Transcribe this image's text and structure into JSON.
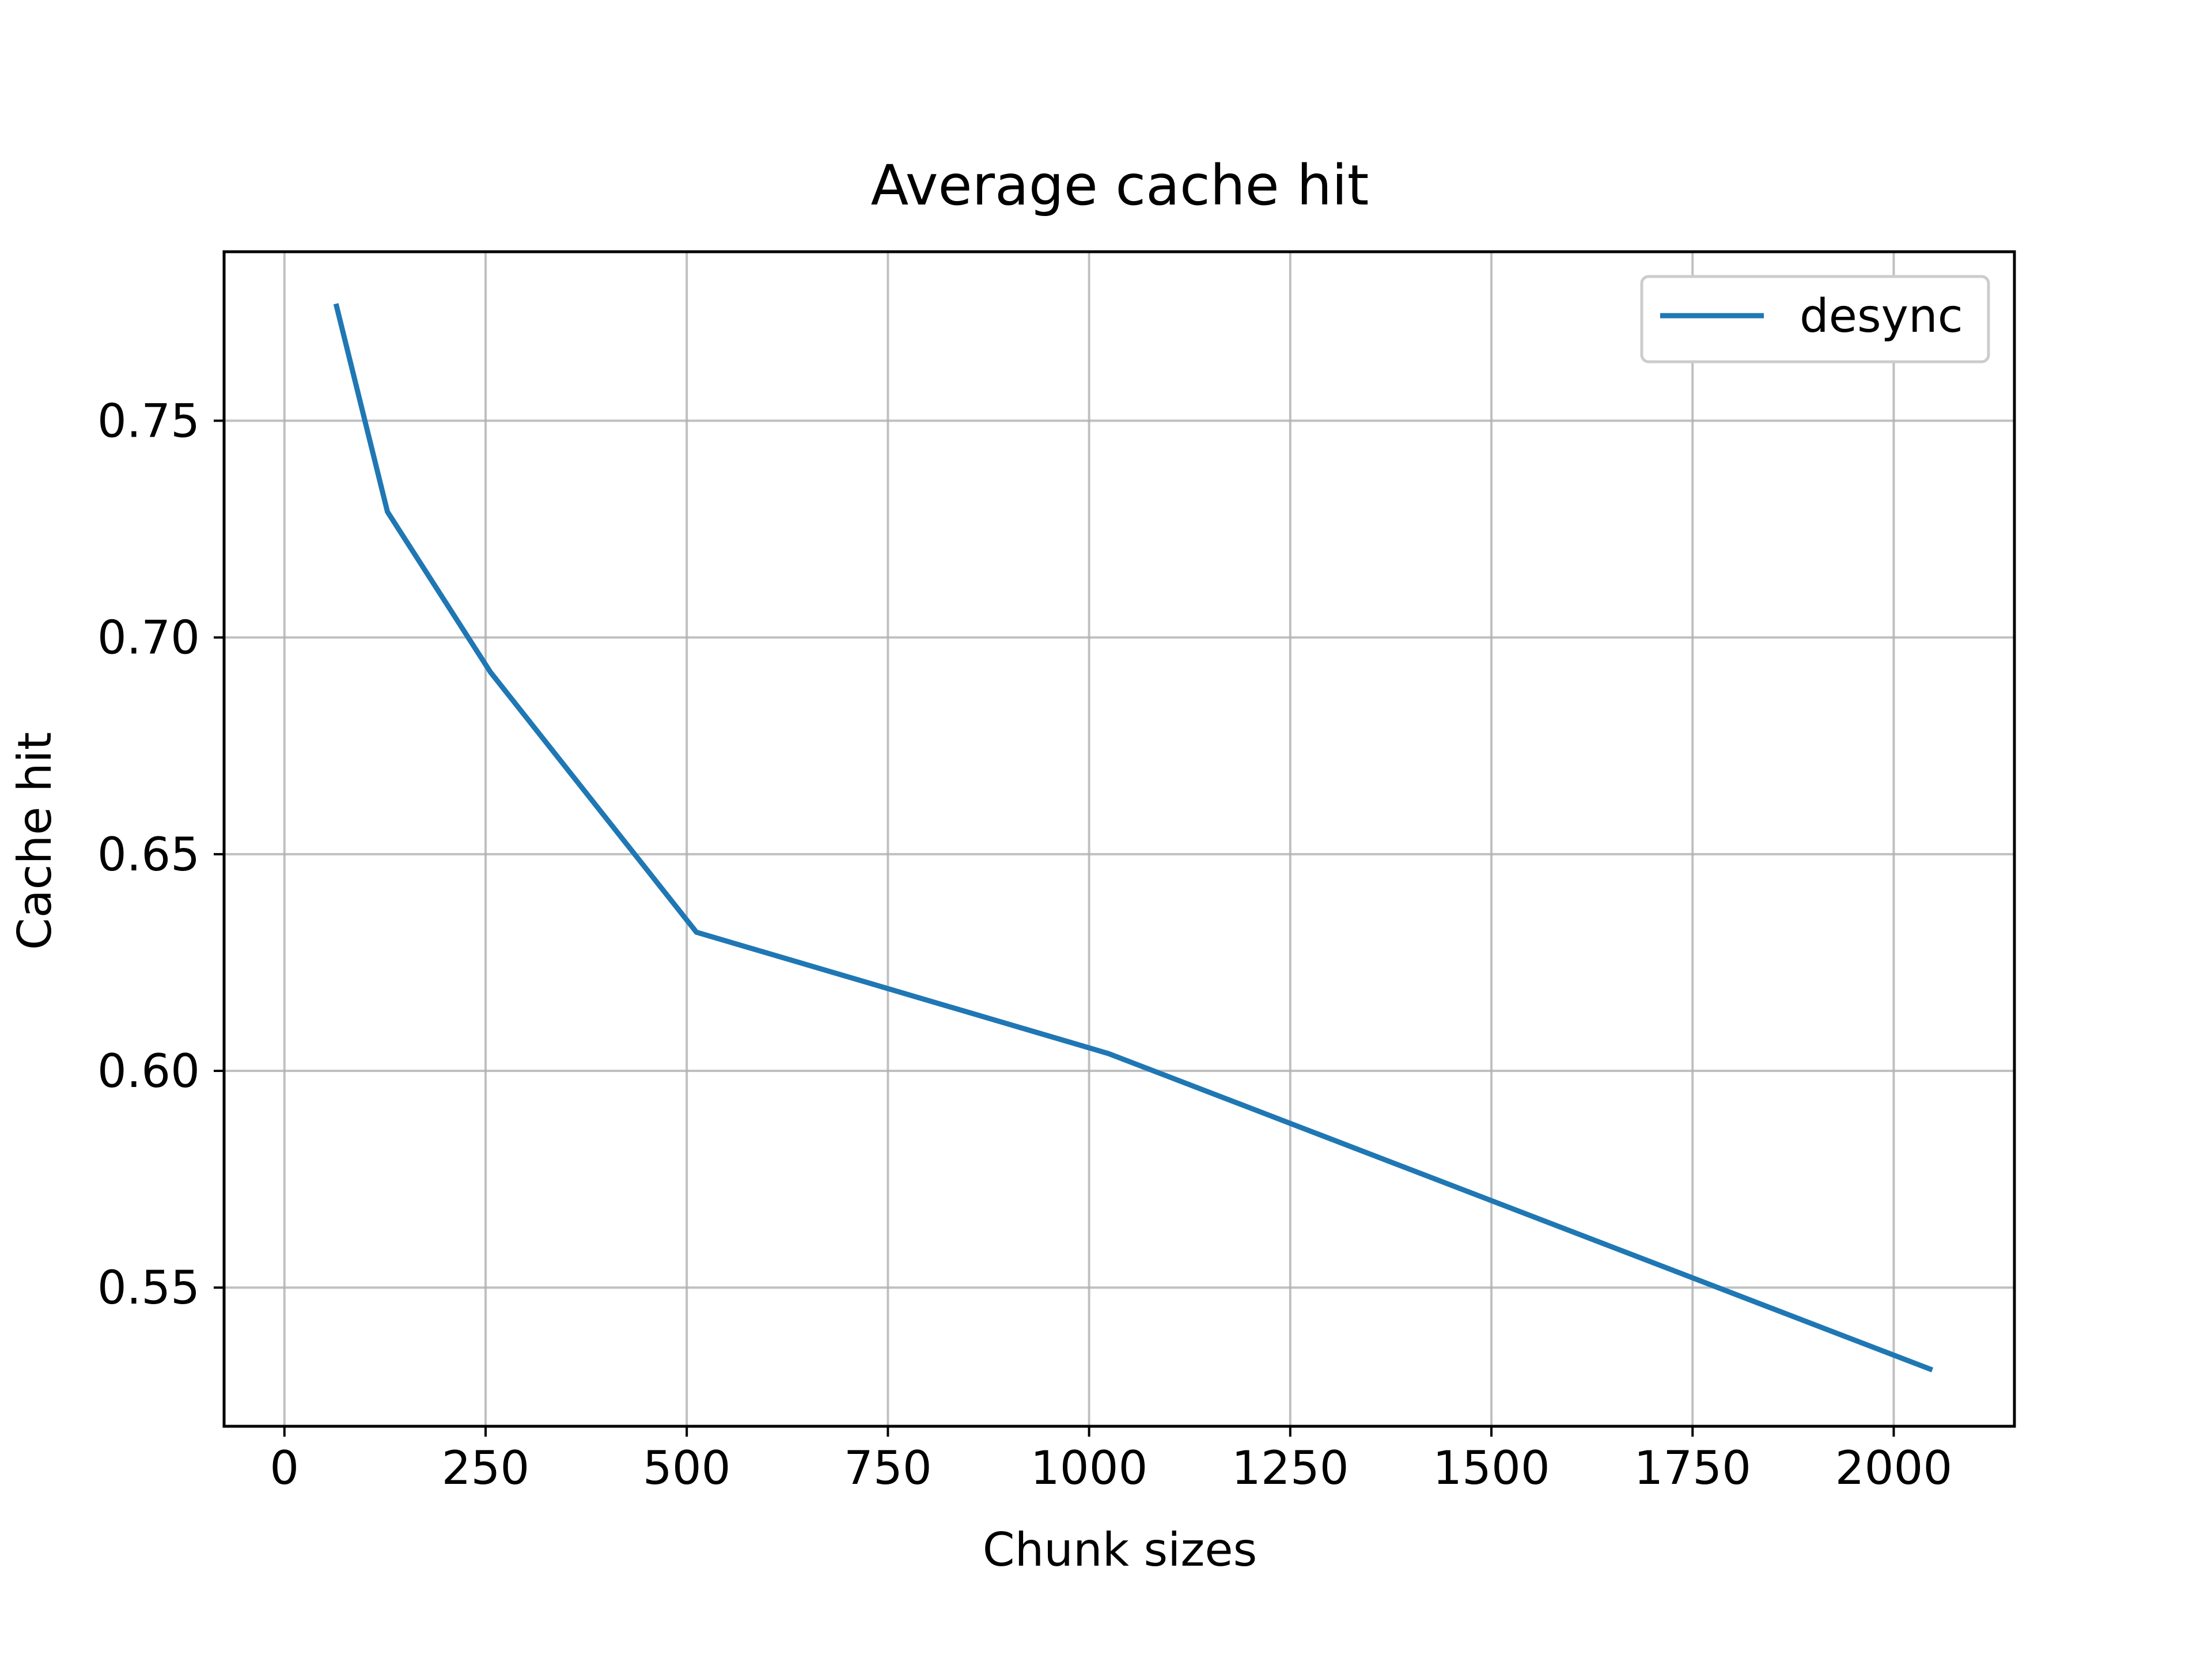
{
  "chart_data": {
    "type": "line",
    "title": "Average cache hit",
    "xlabel": "Chunk sizes",
    "ylabel": "Cache hit",
    "xlim": [
      -75,
      2150
    ],
    "ylim": [
      0.518,
      0.789
    ],
    "xticks": [
      0,
      250,
      500,
      750,
      1000,
      1250,
      1500,
      1750,
      2000
    ],
    "xtick_labels": [
      "0",
      "250",
      "500",
      "750",
      "1000",
      "1250",
      "1500",
      "1750",
      "2000"
    ],
    "yticks": [
      0.55,
      0.6,
      0.65,
      0.7,
      0.75
    ],
    "ytick_labels": [
      "0.55",
      "0.60",
      "0.65",
      "0.70",
      "0.75"
    ],
    "grid": true,
    "legend_position": "top-right",
    "series": [
      {
        "name": "desync",
        "color": "#1f77b4",
        "x": [
          64,
          128,
          256,
          512,
          1024,
          2048
        ],
        "y": [
          0.777,
          0.729,
          0.692,
          0.632,
          0.604,
          0.531
        ]
      }
    ]
  }
}
